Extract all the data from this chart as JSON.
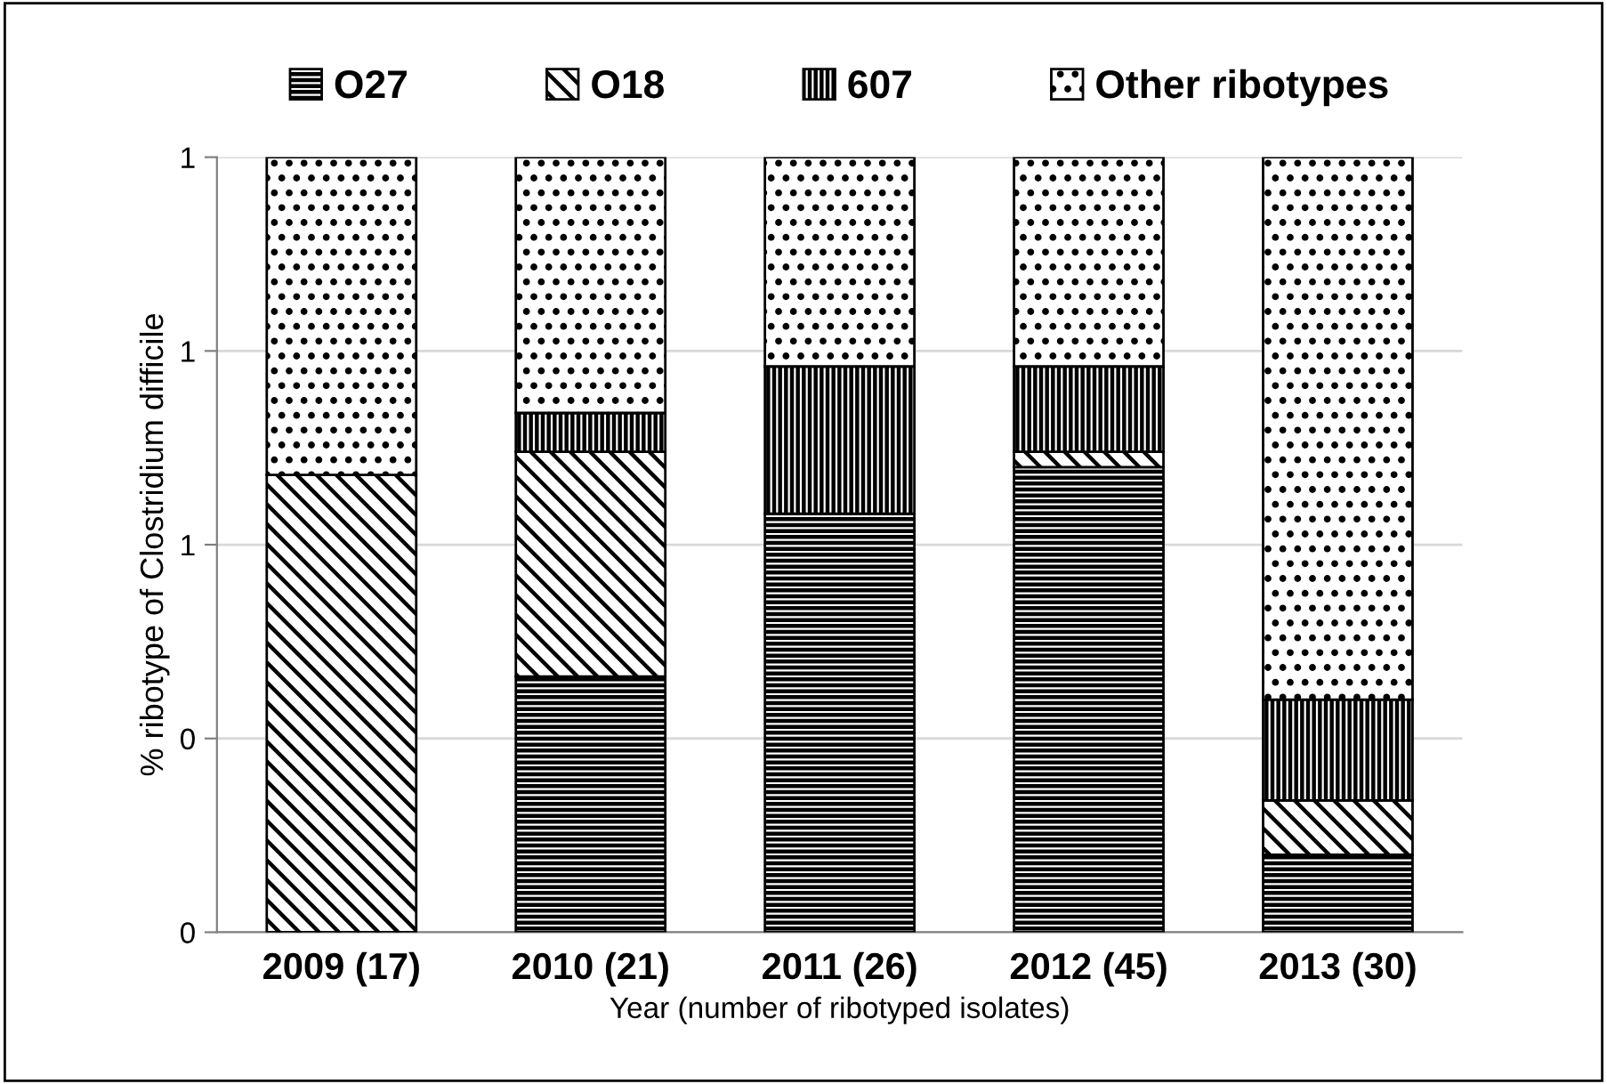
{
  "chart_data": {
    "type": "bar",
    "stacked": true,
    "xlabel": "Year (number of ribotyped isolates)",
    "ylabel": "% ribotype of Clostridium difficile",
    "categories": [
      "2009 (17)",
      "2010 (21)",
      "2011 (26)",
      "2012 (45)",
      "2013 (30)"
    ],
    "series": [
      {
        "name": "O27",
        "color": "#000000",
        "values": [
          0,
          0.33,
          0.54,
          0.6,
          0.1
        ]
      },
      {
        "name": "O18",
        "color": "#000000",
        "values": [
          0.59,
          0.29,
          0,
          0.02,
          0.07
        ]
      },
      {
        "name": "607",
        "color": "#000000",
        "values": [
          0,
          0.05,
          0.19,
          0.11,
          0.13
        ]
      },
      {
        "name": "Other ribotypes",
        "color": "#000000",
        "values": [
          0.41,
          0.33,
          0.27,
          0.27,
          0.7
        ]
      }
    ],
    "ylim": [
      0,
      1
    ],
    "yticks": [
      {
        "value": 0,
        "label": "0"
      },
      {
        "value": 0.25,
        "label": "0"
      },
      {
        "value": 0.5,
        "label": "1"
      },
      {
        "value": 0.75,
        "label": "1"
      },
      {
        "value": 1,
        "label": "1"
      }
    ],
    "grid": "y",
    "legend": "top"
  }
}
